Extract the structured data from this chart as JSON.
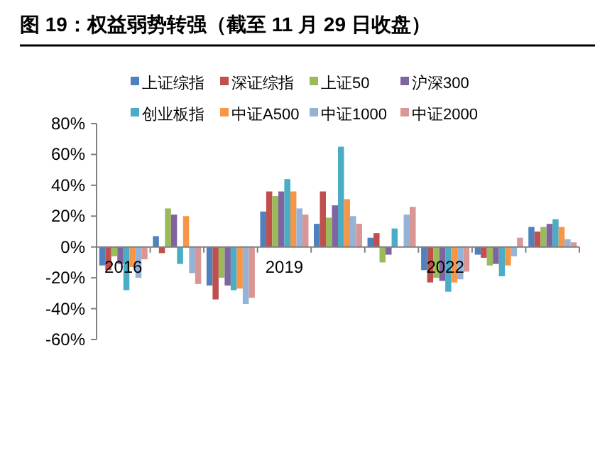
{
  "chart_data": {
    "type": "bar",
    "title": "图 19：权益弱势转强（截至 11 月 29 日收盘）",
    "categories": [
      "2016",
      null,
      null,
      "2019",
      null,
      null,
      "2022",
      null,
      null
    ],
    "series": [
      {
        "name": "上证综指",
        "color": "#4f81bd",
        "values": [
          -12,
          7,
          -25,
          23,
          15,
          6,
          -15,
          -5,
          13
        ]
      },
      {
        "name": "深证综指",
        "color": "#c0504d",
        "values": [
          -15,
          -4,
          -34,
          36,
          36,
          9,
          -23,
          -7,
          10
        ]
      },
      {
        "name": "上证50",
        "color": "#9bbb59",
        "values": [
          -6,
          25,
          -20,
          33,
          19,
          -10,
          -20,
          -12,
          13
        ]
      },
      {
        "name": "沪深300",
        "color": "#8064a2",
        "values": [
          -11,
          21,
          -25,
          36,
          27,
          -5,
          -22,
          -11,
          15
        ]
      },
      {
        "name": "创业板指",
        "color": "#4bacc6",
        "values": [
          -28,
          -11,
          -28,
          44,
          65,
          12,
          -29,
          -19,
          18
        ]
      },
      {
        "name": "中证A500",
        "color": "#f79646",
        "values": [
          -13,
          20,
          -27,
          36,
          31,
          0,
          -23,
          -12,
          13
        ]
      },
      {
        "name": "中证1000",
        "color": "#95b3d7",
        "values": [
          -20,
          -17,
          -37,
          25,
          20,
          21,
          -21,
          -6,
          5
        ]
      },
      {
        "name": "中证2000",
        "color": "#d99694",
        "values": [
          -8,
          -24,
          -33,
          21,
          15,
          26,
          -16,
          6,
          3
        ]
      }
    ],
    "ylim": [
      -60,
      80
    ],
    "yticks": [
      {
        "value": -60,
        "label": "-60%"
      },
      {
        "value": -40,
        "label": "-40%"
      },
      {
        "value": -20,
        "label": "-20%"
      },
      {
        "value": 0,
        "label": "0%"
      },
      {
        "value": 20,
        "label": "20%"
      },
      {
        "value": 40,
        "label": "40%"
      },
      {
        "value": 60,
        "label": "60%"
      },
      {
        "value": 80,
        "label": "80%"
      }
    ],
    "legend": "top",
    "grid": false
  }
}
